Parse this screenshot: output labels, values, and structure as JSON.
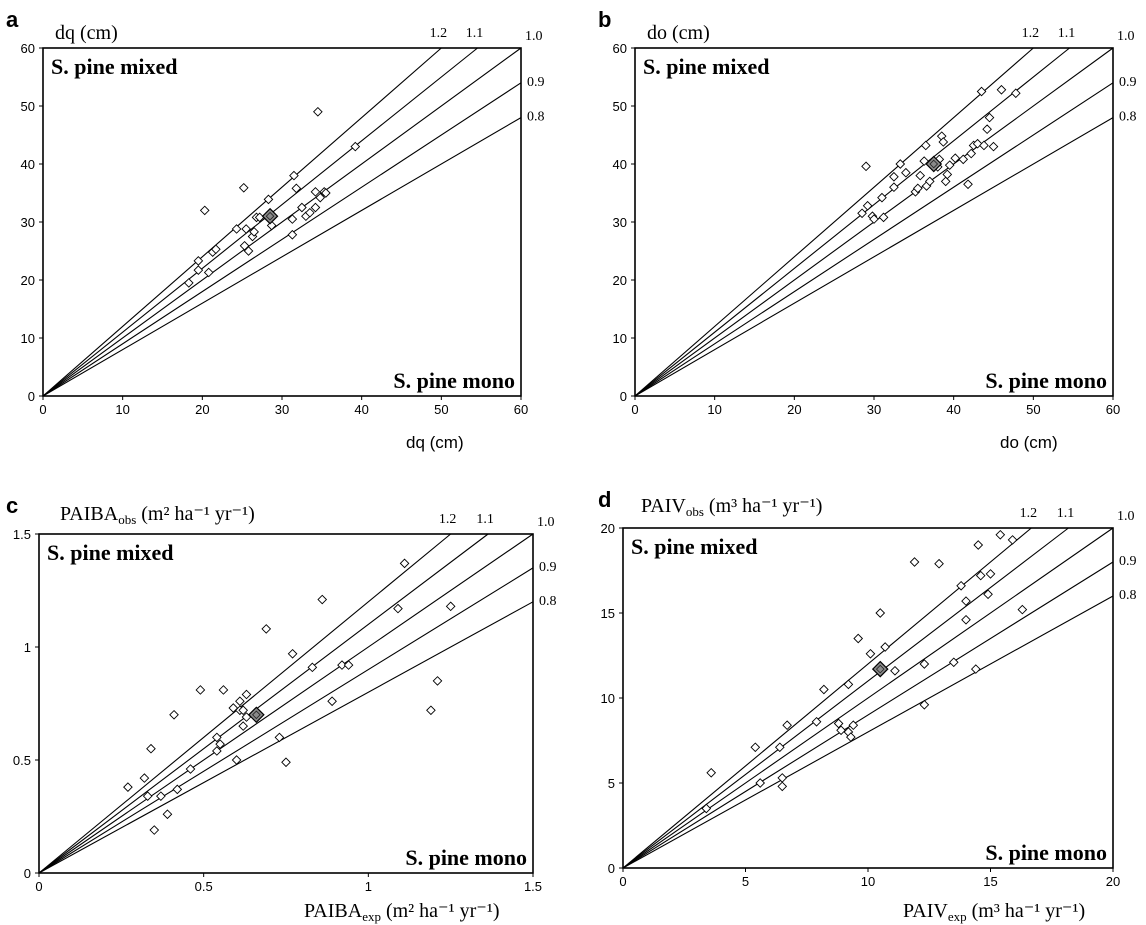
{
  "chart_data": [
    {
      "panel": "a",
      "type": "scatter",
      "ylabel": "dq (cm)",
      "xlabel": "dq (cm)",
      "xlim": [
        0,
        60
      ],
      "ylim": [
        0,
        60
      ],
      "xticks": [
        "0",
        "10",
        "20",
        "30",
        "40",
        "50",
        "60"
      ],
      "yticks": [
        "0",
        "10",
        "20",
        "30",
        "40",
        "50",
        "60"
      ],
      "top_label": "S. pine mixed",
      "bottom_label": "S. pine mono",
      "reference_lines": [
        {
          "slope": 1.2,
          "label": "1.2"
        },
        {
          "slope": 1.1,
          "label": "1.1"
        },
        {
          "slope": 1.0,
          "label": "1.0"
        },
        {
          "slope": 0.9,
          "label": "0.9"
        },
        {
          "slope": 0.8,
          "label": "0.8"
        }
      ],
      "points": [
        [
          18.3,
          19.5
        ],
        [
          19.5,
          21.7
        ],
        [
          19.5,
          23.3
        ],
        [
          20.3,
          32.0
        ],
        [
          20.8,
          21.3
        ],
        [
          21.3,
          24.8
        ],
        [
          21.7,
          25.3
        ],
        [
          24.3,
          28.8
        ],
        [
          25.2,
          35.9
        ],
        [
          25.3,
          25.9
        ],
        [
          25.5,
          28.8
        ],
        [
          25.8,
          25.0
        ],
        [
          26.3,
          27.5
        ],
        [
          26.5,
          28.3
        ],
        [
          26.8,
          30.8
        ],
        [
          27.2,
          30.8
        ],
        [
          28.3,
          33.9
        ],
        [
          28.7,
          29.4
        ],
        [
          31.3,
          27.8
        ],
        [
          31.3,
          30.5
        ],
        [
          31.5,
          38.0
        ],
        [
          31.8,
          35.8
        ],
        [
          32.5,
          32.5
        ],
        [
          33.0,
          31.0
        ],
        [
          33.5,
          31.6
        ],
        [
          34.2,
          32.5
        ],
        [
          34.2,
          35.2
        ],
        [
          34.5,
          49.0
        ],
        [
          34.8,
          34.2
        ],
        [
          35.3,
          35.2
        ],
        [
          35.5,
          35.0
        ],
        [
          39.2,
          43.0
        ]
      ],
      "mean_point": [
        28.5,
        31.0
      ]
    },
    {
      "panel": "b",
      "type": "scatter",
      "ylabel": "do (cm)",
      "xlabel": "do (cm)",
      "xlim": [
        0,
        60
      ],
      "ylim": [
        0,
        60
      ],
      "xticks": [
        "0",
        "10",
        "20",
        "30",
        "40",
        "50",
        "60"
      ],
      "yticks": [
        "0",
        "10",
        "20",
        "30",
        "40",
        "50",
        "60"
      ],
      "top_label": "S. pine mixed",
      "bottom_label": "S. pine mono",
      "reference_lines": [
        {
          "slope": 1.2,
          "label": "1.2"
        },
        {
          "slope": 1.1,
          "label": "1.1"
        },
        {
          "slope": 1.0,
          "label": "1.0"
        },
        {
          "slope": 0.9,
          "label": "0.9"
        },
        {
          "slope": 0.8,
          "label": "0.8"
        }
      ],
      "points": [
        [
          28.5,
          31.5
        ],
        [
          29.0,
          39.6
        ],
        [
          29.2,
          32.8
        ],
        [
          29.8,
          31.0
        ],
        [
          30.0,
          30.5
        ],
        [
          31.0,
          34.2
        ],
        [
          31.2,
          30.8
        ],
        [
          32.5,
          36.0
        ],
        [
          32.5,
          37.8
        ],
        [
          33.3,
          40.0
        ],
        [
          34.0,
          38.5
        ],
        [
          35.2,
          35.2
        ],
        [
          35.5,
          35.8
        ],
        [
          35.8,
          38.0
        ],
        [
          36.3,
          40.5
        ],
        [
          36.5,
          43.2
        ],
        [
          36.6,
          36.2
        ],
        [
          37.0,
          37.0
        ],
        [
          38.0,
          39.5
        ],
        [
          38.2,
          40.8
        ],
        [
          38.5,
          44.8
        ],
        [
          38.7,
          43.8
        ],
        [
          39.0,
          37.0
        ],
        [
          39.2,
          38.2
        ],
        [
          39.5,
          39.8
        ],
        [
          40.2,
          41.0
        ],
        [
          41.2,
          40.8
        ],
        [
          41.8,
          36.5
        ],
        [
          42.2,
          41.8
        ],
        [
          42.5,
          43.2
        ],
        [
          43.0,
          43.5
        ],
        [
          43.5,
          52.5
        ],
        [
          43.8,
          43.2
        ],
        [
          44.2,
          46.0
        ],
        [
          44.5,
          48.0
        ],
        [
          45.0,
          43.0
        ],
        [
          46.0,
          52.8
        ],
        [
          47.8,
          52.2
        ]
      ],
      "mean_point": [
        37.5,
        40.0
      ]
    },
    {
      "panel": "c",
      "type": "scatter",
      "ylabel": "PAIBA",
      "ylabel_sub": "obs",
      "ylabel_units": "(m² ha⁻¹ yr⁻¹)",
      "xlabel": "PAIBA",
      "xlabel_sub": "exp",
      "xlabel_units": "(m² ha⁻¹ yr⁻¹)",
      "xlim": [
        0,
        1.5
      ],
      "ylim": [
        0,
        1.5
      ],
      "xticks": [
        "0",
        "0.5",
        "1",
        "1.5"
      ],
      "yticks": [
        "0",
        "0.5",
        "1",
        "1.5"
      ],
      "top_label": "S. pine mixed",
      "bottom_label": "S. pine mono",
      "reference_lines": [
        {
          "slope": 1.2,
          "label": "1.2"
        },
        {
          "slope": 1.1,
          "label": "1.1"
        },
        {
          "slope": 1.0,
          "label": "1.0"
        },
        {
          "slope": 0.9,
          "label": "0.9"
        },
        {
          "slope": 0.8,
          "label": "0.8"
        }
      ],
      "points": [
        [
          0.27,
          0.38
        ],
        [
          0.32,
          0.42
        ],
        [
          0.33,
          0.34
        ],
        [
          0.34,
          0.55
        ],
        [
          0.35,
          0.19
        ],
        [
          0.37,
          0.34
        ],
        [
          0.39,
          0.26
        ],
        [
          0.41,
          0.7
        ],
        [
          0.42,
          0.37
        ],
        [
          0.46,
          0.46
        ],
        [
          0.49,
          0.81
        ],
        [
          0.54,
          0.54
        ],
        [
          0.54,
          0.6
        ],
        [
          0.55,
          0.57
        ],
        [
          0.56,
          0.81
        ],
        [
          0.59,
          0.73
        ],
        [
          0.6,
          0.5
        ],
        [
          0.61,
          0.76
        ],
        [
          0.61,
          0.72
        ],
        [
          0.62,
          0.65
        ],
        [
          0.62,
          0.72
        ],
        [
          0.63,
          0.69
        ],
        [
          0.63,
          0.79
        ],
        [
          0.69,
          1.08
        ],
        [
          0.73,
          0.6
        ],
        [
          0.75,
          0.49
        ],
        [
          0.77,
          0.97
        ],
        [
          0.83,
          0.91
        ],
        [
          0.86,
          1.21
        ],
        [
          0.89,
          0.76
        ],
        [
          0.92,
          0.92
        ],
        [
          0.94,
          0.92
        ],
        [
          1.09,
          1.17
        ],
        [
          1.11,
          1.37
        ],
        [
          1.19,
          0.72
        ],
        [
          1.21,
          0.85
        ],
        [
          1.25,
          1.18
        ]
      ],
      "mean_point": [
        0.66,
        0.7
      ]
    },
    {
      "panel": "d",
      "type": "scatter",
      "ylabel": "PAIV",
      "ylabel_sub": "obs",
      "ylabel_units": "(m³ ha⁻¹ yr⁻¹)",
      "xlabel": "PAIV",
      "xlabel_sub": "exp",
      "xlabel_units": "(m³ ha⁻¹ yr⁻¹)",
      "xlim": [
        0,
        20
      ],
      "ylim": [
        0,
        20
      ],
      "xticks": [
        "0",
        "5",
        "10",
        "15",
        "20"
      ],
      "yticks": [
        "0",
        "5",
        "10",
        "15",
        "20"
      ],
      "top_label": "S. pine mixed",
      "bottom_label": "S. pine mono",
      "reference_lines": [
        {
          "slope": 1.2,
          "label": "1.2"
        },
        {
          "slope": 1.1,
          "label": "1.1"
        },
        {
          "slope": 1.0,
          "label": "1.0"
        },
        {
          "slope": 0.9,
          "label": "0.9"
        },
        {
          "slope": 0.8,
          "label": "0.8"
        }
      ],
      "points": [
        [
          3.4,
          3.5
        ],
        [
          3.6,
          5.6
        ],
        [
          5.4,
          7.1
        ],
        [
          5.6,
          5.0
        ],
        [
          6.4,
          7.1
        ],
        [
          6.5,
          4.8
        ],
        [
          6.5,
          5.3
        ],
        [
          6.7,
          8.4
        ],
        [
          7.9,
          8.6
        ],
        [
          8.2,
          10.5
        ],
        [
          8.8,
          8.5
        ],
        [
          8.9,
          8.1
        ],
        [
          9.2,
          8.0
        ],
        [
          9.2,
          10.8
        ],
        [
          9.3,
          7.7
        ],
        [
          9.4,
          8.4
        ],
        [
          9.6,
          13.5
        ],
        [
          10.1,
          12.6
        ],
        [
          10.5,
          15.0
        ],
        [
          10.7,
          13.0
        ],
        [
          11.1,
          11.6
        ],
        [
          11.9,
          18.0
        ],
        [
          12.3,
          9.6
        ],
        [
          12.3,
          12.0
        ],
        [
          12.9,
          17.9
        ],
        [
          13.5,
          12.1
        ],
        [
          13.8,
          16.6
        ],
        [
          14.0,
          14.6
        ],
        [
          14.0,
          15.7
        ],
        [
          14.4,
          11.7
        ],
        [
          14.5,
          19.0
        ],
        [
          14.6,
          17.2
        ],
        [
          14.9,
          16.1
        ],
        [
          15.0,
          17.3
        ],
        [
          15.4,
          19.6
        ],
        [
          15.9,
          19.3
        ],
        [
          16.3,
          15.2
        ]
      ],
      "mean_point": [
        10.5,
        11.7
      ]
    }
  ]
}
